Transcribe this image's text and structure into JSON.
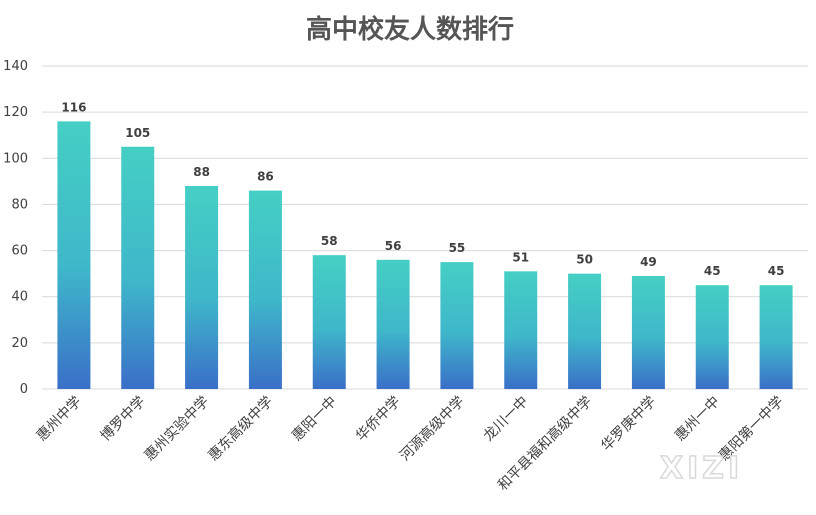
{
  "chart_data": {
    "type": "bar",
    "title": "高中校友人数排行",
    "categories": [
      "惠州中学",
      "博罗中学",
      "惠州实验中学",
      "惠东高级中学",
      "惠阳一中",
      "华侨中学",
      "河源高级中学",
      "龙川一中",
      "和平县福和高级中学",
      "华罗庚中学",
      "惠州一中",
      "惠阳第一中学"
    ],
    "values": [
      116,
      105,
      88,
      86,
      58,
      56,
      55,
      51,
      50,
      49,
      45,
      45
    ],
    "ylim": [
      0,
      140
    ],
    "yticks": [
      0,
      20,
      40,
      60,
      80,
      100,
      120,
      140
    ],
    "xlabel": "",
    "ylabel": "",
    "grid": true,
    "legend": "none",
    "colors": {
      "bar_top": "#45CFC4",
      "bar_bottom": "#3A6FC8",
      "grid": "#D9D9D9",
      "text": "#404040",
      "title": "#555555"
    }
  },
  "watermark": "XIZI"
}
